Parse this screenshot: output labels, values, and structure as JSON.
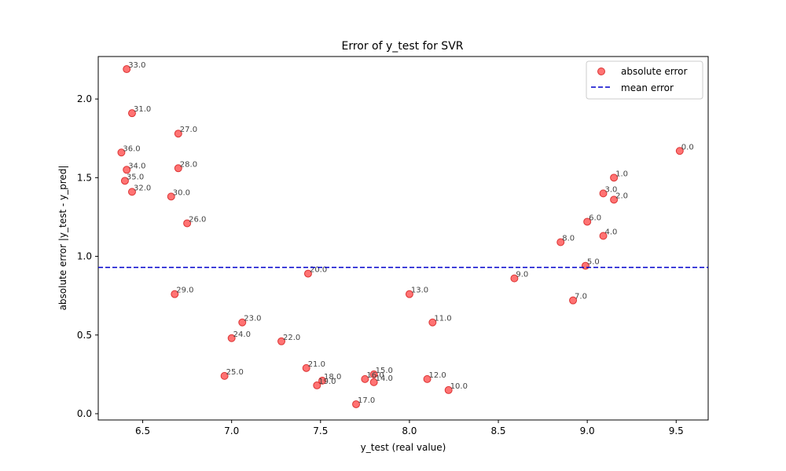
{
  "chart_data": {
    "type": "scatter",
    "title": "Error of y_test for SVR",
    "xlabel": "y_test (real value)",
    "ylabel": "absolute error |y_test - y_pred|",
    "xlim": [
      6.25,
      9.68
    ],
    "ylim": [
      -0.04,
      2.27
    ],
    "xticks": [
      6.5,
      7.0,
      7.5,
      8.0,
      8.5,
      9.0,
      9.5
    ],
    "yticks": [
      0.0,
      0.5,
      1.0,
      1.5,
      2.0
    ],
    "xtick_labels": [
      "6.5",
      "7.0",
      "7.5",
      "8.0",
      "8.5",
      "9.0",
      "9.5"
    ],
    "ytick_labels": [
      "0.0",
      "0.5",
      "1.0",
      "1.5",
      "2.0"
    ],
    "legend": {
      "placement": "top-right",
      "absolute_error": "absolute error",
      "mean_error": "mean error"
    },
    "mean_error": 0.93,
    "colors": {
      "points": "#ff0000",
      "mean_line": "#0000cc"
    },
    "points": [
      {
        "label": "0.0",
        "x": 9.52,
        "y": 1.67
      },
      {
        "label": "1.0",
        "x": 9.15,
        "y": 1.5
      },
      {
        "label": "2.0",
        "x": 9.15,
        "y": 1.36
      },
      {
        "label": "3.0",
        "x": 9.09,
        "y": 1.4
      },
      {
        "label": "4.0",
        "x": 9.09,
        "y": 1.13
      },
      {
        "label": "5.0",
        "x": 8.99,
        "y": 0.94
      },
      {
        "label": "6.0",
        "x": 9.0,
        "y": 1.22
      },
      {
        "label": "7.0",
        "x": 8.92,
        "y": 0.72
      },
      {
        "label": "8.0",
        "x": 8.85,
        "y": 1.09
      },
      {
        "label": "9.0",
        "x": 8.59,
        "y": 0.86
      },
      {
        "label": "10.0",
        "x": 8.22,
        "y": 0.15
      },
      {
        "label": "11.0",
        "x": 8.13,
        "y": 0.58
      },
      {
        "label": "12.0",
        "x": 8.1,
        "y": 0.22
      },
      {
        "label": "13.0",
        "x": 8.0,
        "y": 0.76
      },
      {
        "label": "14.0",
        "x": 7.8,
        "y": 0.2
      },
      {
        "label": "15.0",
        "x": 7.8,
        "y": 0.25
      },
      {
        "label": "16.0",
        "x": 7.75,
        "y": 0.22
      },
      {
        "label": "17.0",
        "x": 7.7,
        "y": 0.06
      },
      {
        "label": "18.0",
        "x": 7.51,
        "y": 0.21
      },
      {
        "label": "19.0",
        "x": 7.48,
        "y": 0.18
      },
      {
        "label": "20.0",
        "x": 7.43,
        "y": 0.89
      },
      {
        "label": "21.0",
        "x": 7.42,
        "y": 0.29
      },
      {
        "label": "22.0",
        "x": 7.28,
        "y": 0.46
      },
      {
        "label": "23.0",
        "x": 7.06,
        "y": 0.58
      },
      {
        "label": "24.0",
        "x": 7.0,
        "y": 0.48
      },
      {
        "label": "25.0",
        "x": 6.96,
        "y": 0.24
      },
      {
        "label": "26.0",
        "x": 6.75,
        "y": 1.21
      },
      {
        "label": "27.0",
        "x": 6.7,
        "y": 1.78
      },
      {
        "label": "28.0",
        "x": 6.7,
        "y": 1.56
      },
      {
        "label": "29.0",
        "x": 6.68,
        "y": 0.76
      },
      {
        "label": "30.0",
        "x": 6.66,
        "y": 1.38
      },
      {
        "label": "31.0",
        "x": 6.44,
        "y": 1.91
      },
      {
        "label": "32.0",
        "x": 6.44,
        "y": 1.41
      },
      {
        "label": "33.0",
        "x": 6.41,
        "y": 2.19
      },
      {
        "label": "34.0",
        "x": 6.41,
        "y": 1.55
      },
      {
        "label": "35.0",
        "x": 6.4,
        "y": 1.48
      },
      {
        "label": "36.0",
        "x": 6.38,
        "y": 1.66
      }
    ]
  }
}
